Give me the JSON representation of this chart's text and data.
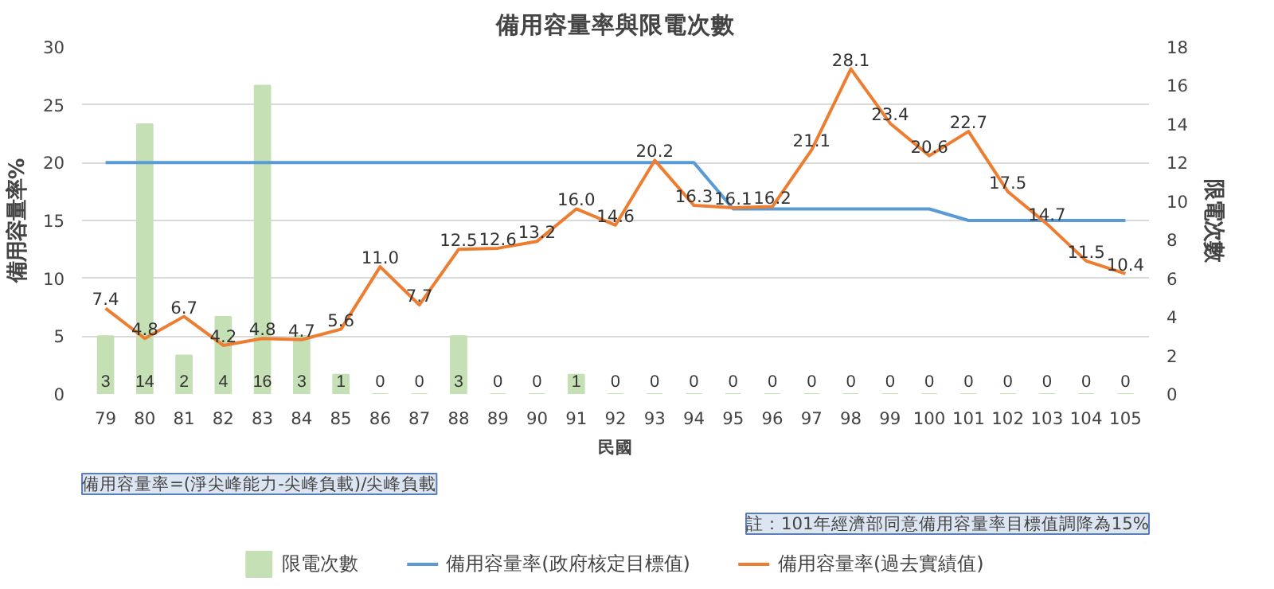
{
  "chart_data": {
    "type": "bar",
    "title": "備用容量率與限電次數",
    "xlabel": "民國",
    "ylabel": "備用容量率%",
    "y2label": "限電次數",
    "categories": [
      "79",
      "80",
      "81",
      "82",
      "83",
      "84",
      "85",
      "86",
      "87",
      "88",
      "89",
      "90",
      "91",
      "92",
      "93",
      "94",
      "95",
      "96",
      "97",
      "98",
      "99",
      "100",
      "101",
      "102",
      "103",
      "104",
      "105"
    ],
    "series": [
      {
        "name": "限電次數",
        "axis": "y2",
        "color": "#c5e0b4",
        "values": [
          3,
          14,
          2,
          4,
          16,
          3,
          1,
          0,
          0,
          3,
          0,
          0,
          1,
          0,
          0,
          0,
          0,
          0,
          0,
          0,
          0,
          0,
          0,
          0,
          0,
          0,
          0
        ],
        "value_labels": [
          "3",
          "14",
          "2",
          "4",
          "16",
          "3",
          "1",
          "0",
          "0",
          "3",
          "0",
          "0",
          "1",
          "0",
          "0",
          "0",
          "0",
          "0",
          "0",
          "0",
          "0",
          "0",
          "0",
          "0",
          "0",
          "0",
          "0"
        ]
      },
      {
        "name": "備用容量率(政府核定目標值)",
        "type": "line",
        "color": "#5b9bd5",
        "values": [
          20,
          20,
          20,
          20,
          20,
          20,
          20,
          20,
          20,
          20,
          20,
          20,
          20,
          20,
          20,
          20,
          16,
          16,
          16,
          16,
          16,
          16,
          15,
          15,
          15,
          15,
          15
        ]
      },
      {
        "name": "備用容量率(過去實績值)",
        "type": "line",
        "color": "#ed7d31",
        "values": [
          7.4,
          4.8,
          6.7,
          4.2,
          4.8,
          4.7,
          5.6,
          11.0,
          7.7,
          12.5,
          12.6,
          13.2,
          16.0,
          14.6,
          20.2,
          16.3,
          16.1,
          16.2,
          21.1,
          28.1,
          23.4,
          20.6,
          22.7,
          17.5,
          14.7,
          11.5,
          10.4
        ],
        "value_labels": [
          "7.4",
          "4.8",
          "6.7",
          "4.2",
          "4.8",
          "4.7",
          "5.6",
          "11.0",
          "7.7",
          "12.5",
          "12.6",
          "13.2",
          "16.0",
          "14.6",
          "20.2",
          "16.3",
          "16.1",
          "16.2",
          "21.1",
          "28.1",
          "23.4",
          "20.6",
          "22.7",
          "17.5",
          "14.7",
          "11.5",
          "10.4"
        ]
      }
    ],
    "ylim": [
      0,
      30
    ],
    "yticks": [
      0,
      5,
      10,
      15,
      20,
      25,
      30
    ],
    "y2lim": [
      0,
      18
    ],
    "y2ticks": [
      0,
      2,
      4,
      6,
      8,
      10,
      12,
      14,
      16,
      18
    ],
    "grid": "y",
    "legend": "bottom",
    "line_style": "solid",
    "marker": "none",
    "annotations": [
      "備用容量率=(淨尖峰能力-尖峰負載)/尖峰負載",
      "註：101年經濟部同意備用容量率目標值調降為15%"
    ]
  }
}
